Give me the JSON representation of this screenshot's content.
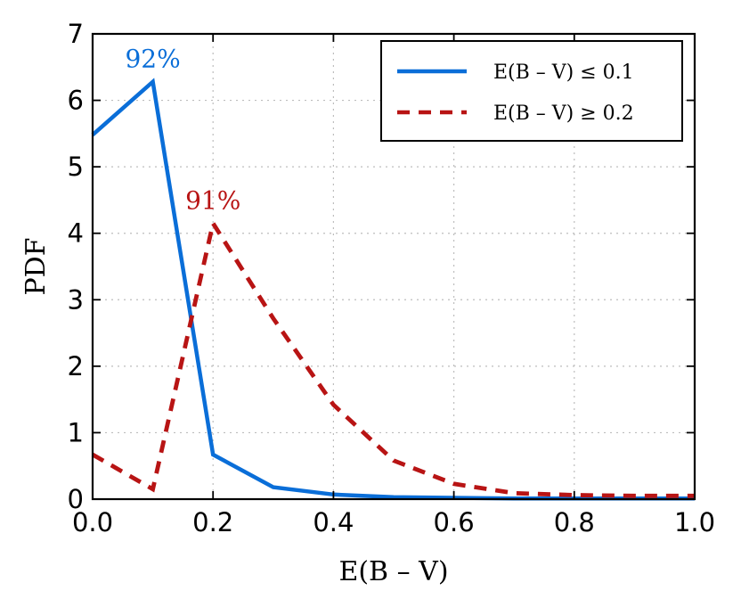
{
  "chart_data": {
    "type": "line",
    "xlabel": "E(B – V)",
    "ylabel": "PDF",
    "xlim": [
      0.0,
      1.0
    ],
    "ylim": [
      0,
      7
    ],
    "x_ticks": [
      "0.0",
      "0.2",
      "0.4",
      "0.6",
      "0.8",
      "1.0"
    ],
    "y_ticks": [
      "0",
      "1",
      "2",
      "3",
      "4",
      "5",
      "6",
      "7"
    ],
    "grid": true,
    "legend_position": "top-right",
    "series": [
      {
        "name": "E(B – V) ≤ 0.1",
        "color": "#0a6ed8",
        "style": "solid",
        "x": [
          0.0,
          0.1,
          0.2,
          0.3,
          0.4,
          0.5,
          0.6,
          0.7,
          0.8,
          0.9,
          1.0
        ],
        "y": [
          5.48,
          6.28,
          0.67,
          0.18,
          0.07,
          0.03,
          0.02,
          0.01,
          0.01,
          0.01,
          0.01
        ]
      },
      {
        "name": "E(B – V) ≥ 0.2",
        "color": "#b81414",
        "style": "dashed",
        "x": [
          0.0,
          0.1,
          0.2,
          0.3,
          0.4,
          0.5,
          0.6,
          0.7,
          0.8,
          0.9,
          1.0
        ],
        "y": [
          0.67,
          0.15,
          4.15,
          2.72,
          1.42,
          0.58,
          0.23,
          0.09,
          0.06,
          0.05,
          0.05
        ]
      }
    ],
    "annotations": [
      {
        "text": "92%",
        "color": "#0a6ed8",
        "x": 0.1,
        "y": 6.28
      },
      {
        "text": "91%",
        "color": "#b81414",
        "x": 0.2,
        "y": 4.15
      }
    ]
  }
}
